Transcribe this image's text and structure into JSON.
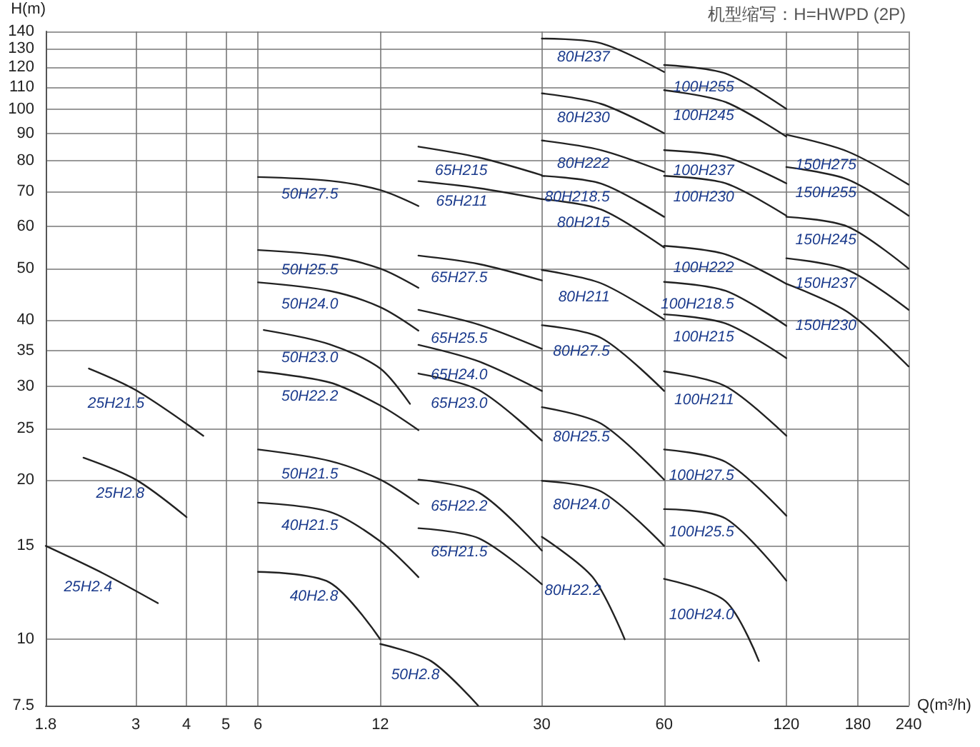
{
  "chart_data": {
    "type": "line",
    "xlabel": "Q(m³/h)",
    "ylabel": "H(m)",
    "annotations": [
      "机型缩写：H=HWPD (2P)"
    ],
    "log": "xy",
    "grid": true,
    "xlim": [
      1.8,
      240
    ],
    "xticks": [
      1.8,
      3,
      4,
      5,
      6,
      12,
      30,
      60,
      120,
      180,
      240
    ],
    "ylim": [
      7.5,
      140
    ],
    "yticks": [
      7.5,
      10,
      15,
      20,
      25,
      30,
      35,
      40,
      50,
      60,
      70,
      80,
      90,
      100,
      110,
      120,
      130,
      140
    ],
    "series": [
      {
        "name": "25H2.4",
        "color": "#222222",
        "x": [
          1.8,
          2.5,
          3.4
        ],
        "values": [
          15,
          13.3,
          11.7
        ]
      },
      {
        "name": "25H2.8",
        "color": "#222222",
        "x": [
          2.23,
          3,
          4
        ],
        "values": [
          22,
          20,
          17
        ]
      },
      {
        "name": "25H21.5",
        "color": "#222222",
        "x": [
          2.3,
          3,
          4.4
        ],
        "values": [
          32.4,
          29.5,
          24.2
        ]
      },
      {
        "name": "50H27.5",
        "color": "#222222",
        "x": [
          6,
          9,
          12,
          14.9
        ],
        "values": [
          74.4,
          73.2,
          70.3,
          65.6
        ]
      },
      {
        "name": "50H25.5",
        "color": "#222222",
        "x": [
          6,
          9,
          12,
          14.9
        ],
        "values": [
          54.2,
          52.8,
          50,
          46
        ]
      },
      {
        "name": "50H24.0",
        "color": "#222222",
        "x": [
          6,
          9,
          12,
          14.9
        ],
        "values": [
          47.1,
          45.4,
          42.3,
          38.2
        ]
      },
      {
        "name": "50H23.0",
        "color": "#222222",
        "x": [
          6.2,
          9,
          12,
          14.2
        ],
        "values": [
          38.3,
          36,
          32.4,
          27.8
        ]
      },
      {
        "name": "50H22.2",
        "color": "#222222",
        "x": [
          6,
          9,
          12,
          14.9
        ],
        "values": [
          32,
          30.5,
          27.6,
          24.8
        ]
      },
      {
        "name": "50H21.5",
        "color": "#222222",
        "x": [
          6,
          9,
          12,
          14.9
        ],
        "values": [
          22.8,
          21.7,
          20,
          18
        ]
      },
      {
        "name": "40H21.5",
        "color": "#222222",
        "x": [
          6,
          9,
          12,
          14.9
        ],
        "values": [
          18.1,
          17.4,
          15.3,
          13.1
        ]
      },
      {
        "name": "40H2.8",
        "color": "#222222",
        "x": [
          6,
          9,
          12
        ],
        "values": [
          13.4,
          12.8,
          10
        ]
      },
      {
        "name": "50H2.8",
        "color": "#222222",
        "x": [
          12,
          16,
          20.9
        ],
        "values": [
          9.8,
          9.1,
          7.5
        ]
      },
      {
        "name": "65H215",
        "color": "#222222",
        "x": [
          14.9,
          21,
          30
        ],
        "values": [
          84.9,
          81,
          75
        ]
      },
      {
        "name": "65H211",
        "color": "#222222",
        "x": [
          14.9,
          21,
          30
        ],
        "values": [
          73.1,
          70.9,
          67.6
        ]
      },
      {
        "name": "65H27.5",
        "color": "#222222",
        "x": [
          14.9,
          21,
          30
        ],
        "values": [
          52.9,
          51,
          47.5
        ]
      },
      {
        "name": "65H25.5",
        "color": "#222222",
        "x": [
          14.9,
          21,
          30
        ],
        "values": [
          41.8,
          39.2,
          35.3
        ]
      },
      {
        "name": "65H24.0",
        "color": "#222222",
        "x": [
          14.9,
          21,
          30
        ],
        "values": [
          35.9,
          33.4,
          29.4
        ]
      },
      {
        "name": "65H23.0",
        "color": "#222222",
        "x": [
          14.9,
          21,
          30
        ],
        "values": [
          31.7,
          29.5,
          23.7
        ]
      },
      {
        "name": "65H22.2",
        "color": "#222222",
        "x": [
          14.9,
          21,
          30
        ],
        "values": [
          20,
          18.9,
          14.7
        ]
      },
      {
        "name": "65H21.5",
        "color": "#222222",
        "x": [
          14.9,
          21,
          30
        ],
        "values": [
          16.2,
          15.5,
          12.7
        ]
      },
      {
        "name": "80H237",
        "color": "#222222",
        "x": [
          30,
          42,
          60
        ],
        "values": [
          135.7,
          133,
          117.4
        ]
      },
      {
        "name": "80H230",
        "color": "#222222",
        "x": [
          30,
          42,
          60
        ],
        "values": [
          107,
          102.2,
          90
        ]
      },
      {
        "name": "80H222",
        "color": "#222222",
        "x": [
          30,
          42,
          60
        ],
        "values": [
          87.2,
          83.6,
          76.1
        ]
      },
      {
        "name": "80H218.5",
        "color": "#222222",
        "x": [
          30,
          42,
          60
        ],
        "values": [
          74.8,
          72.3,
          62.6
        ]
      },
      {
        "name": "80H215",
        "color": "#222222",
        "x": [
          30,
          42,
          60
        ],
        "values": [
          67.6,
          64.6,
          54.8
        ]
      },
      {
        "name": "80H211",
        "color": "#222222",
        "x": [
          30,
          42,
          60
        ],
        "values": [
          49.7,
          46.9,
          40.1
        ]
      },
      {
        "name": "80H27.5",
        "color": "#222222",
        "x": [
          30,
          42,
          60
        ],
        "values": [
          39.1,
          37,
          29.4
        ]
      },
      {
        "name": "80H25.5",
        "color": "#222222",
        "x": [
          30,
          42,
          60
        ],
        "values": [
          27.4,
          25.5,
          20
        ]
      },
      {
        "name": "80H24.0",
        "color": "#222222",
        "x": [
          30,
          42,
          60
        ],
        "values": [
          19.9,
          19,
          15
        ]
      },
      {
        "name": "80H22.2",
        "color": "#222222",
        "x": [
          30,
          40,
          48
        ],
        "values": [
          15.6,
          13.1,
          10
        ]
      },
      {
        "name": "100H255",
        "color": "#222222",
        "x": [
          60,
          85,
          120
        ],
        "values": [
          121,
          116.6,
          100
        ]
      },
      {
        "name": "100H245",
        "color": "#222222",
        "x": [
          60,
          85,
          120
        ],
        "values": [
          108.5,
          103,
          88.7
        ]
      },
      {
        "name": "100H237",
        "color": "#222222",
        "x": [
          60,
          85,
          120
        ],
        "values": [
          83.6,
          81.2,
          72.4
        ]
      },
      {
        "name": "100H230",
        "color": "#222222",
        "x": [
          60,
          85,
          120
        ],
        "values": [
          74.8,
          72.4,
          62.9
        ]
      },
      {
        "name": "100H222",
        "color": "#222222",
        "x": [
          60,
          85,
          120
        ],
        "values": [
          55.2,
          53.2,
          46.8
        ]
      },
      {
        "name": "100H218.5",
        "color": "#222222",
        "x": [
          60,
          85,
          120
        ],
        "values": [
          47.2,
          45.4,
          39
        ]
      },
      {
        "name": "100H215",
        "color": "#222222",
        "x": [
          60,
          85,
          120
        ],
        "values": [
          41,
          39.4,
          33.9
        ]
      },
      {
        "name": "100H211",
        "color": "#222222",
        "x": [
          60,
          85,
          120
        ],
        "values": [
          32,
          30,
          24.2
        ]
      },
      {
        "name": "100H27.5",
        "color": "#222222",
        "x": [
          60,
          85,
          120
        ],
        "values": [
          22.8,
          21.6,
          17.1
        ]
      },
      {
        "name": "100H25.5",
        "color": "#222222",
        "x": [
          60,
          85,
          120
        ],
        "values": [
          17.6,
          16.9,
          12.9
        ]
      },
      {
        "name": "100H24.0",
        "color": "#222222",
        "x": [
          60,
          85,
          102.7
        ],
        "values": [
          13,
          11.8,
          9.1
        ]
      },
      {
        "name": "150H275",
        "color": "#222222",
        "x": [
          120,
          170,
          240
        ],
        "values": [
          89.4,
          83.1,
          72
        ]
      },
      {
        "name": "150H255",
        "color": "#222222",
        "x": [
          120,
          170,
          240
        ],
        "values": [
          77.7,
          73.6,
          62.9
        ]
      },
      {
        "name": "150H245",
        "color": "#222222",
        "x": [
          120,
          170,
          240
        ],
        "values": [
          62.6,
          60,
          50
        ]
      },
      {
        "name": "150H237",
        "color": "#222222",
        "x": [
          120,
          170,
          240
        ],
        "values": [
          52.3,
          49.7,
          41.8
        ]
      },
      {
        "name": "150H230",
        "color": "#222222",
        "x": [
          120,
          170,
          240
        ],
        "values": [
          46.8,
          41.4,
          32.7
        ]
      }
    ]
  }
}
